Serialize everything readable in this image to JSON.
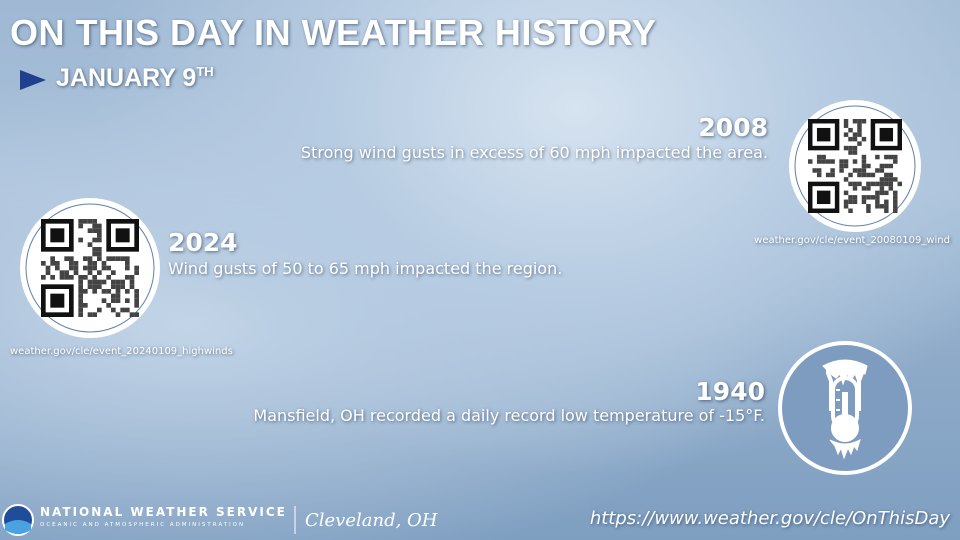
{
  "header": {
    "title": "ON THIS DAY IN WEATHER HISTORY",
    "date": "JANUARY 9",
    "date_suffix": "TH"
  },
  "events": [
    {
      "year": "2008",
      "text": "Strong wind gusts in excess of 60 mph impacted the area.",
      "link": "weather.gov/cle/event_20080109_wind"
    },
    {
      "year": "2024",
      "text": "Wind gusts of 50 to 65 mph impacted the region.",
      "link": "weather.gov/cle/event_20240109_highwinds"
    },
    {
      "year": "1940",
      "text": "Mansfield, OH recorded a daily record low temperature of -15°F."
    }
  ],
  "footer": {
    "agency": "NATIONAL WEATHER SERVICE",
    "subagency": "OCEANIC AND ATMOSPHERIC ADMINISTRATION",
    "office": "Cleveland, OH",
    "url": "https://www.weather.gov/cle/OnThisDay"
  }
}
